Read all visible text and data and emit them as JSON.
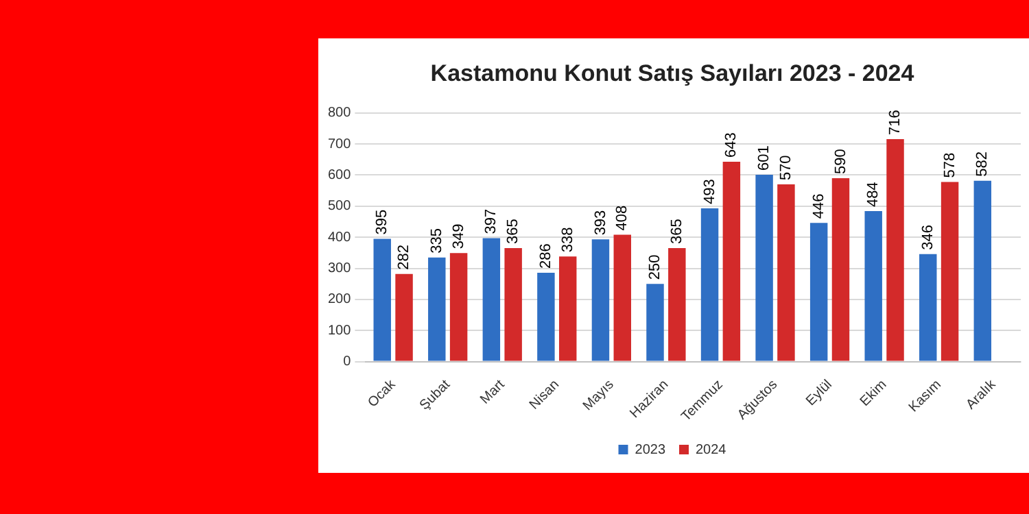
{
  "chart_data": {
    "type": "bar",
    "title": "Kastamonu Konut Satış Sayıları 2023 - 2024",
    "categories": [
      "Ocak",
      "Şubat",
      "Mart",
      "Nisan",
      "Mayıs",
      "Haziran",
      "Temmuz",
      "Ağustos",
      "Eylül",
      "Ekim",
      "Kasım",
      "Aralık"
    ],
    "series": [
      {
        "name": "2023",
        "color": "#2f6fc4",
        "values": [
          395,
          335,
          397,
          286,
          393,
          250,
          493,
          601,
          446,
          484,
          346,
          582
        ]
      },
      {
        "name": "2024",
        "color": "#d32a2a",
        "values": [
          282,
          349,
          365,
          338,
          408,
          365,
          643,
          570,
          590,
          716,
          578,
          null
        ]
      }
    ],
    "ylim": [
      0,
      800
    ],
    "yticks": [
      0,
      100,
      200,
      300,
      400,
      500,
      600,
      700,
      800
    ],
    "grid": "y",
    "legend": "bottom",
    "data_labels": true
  }
}
